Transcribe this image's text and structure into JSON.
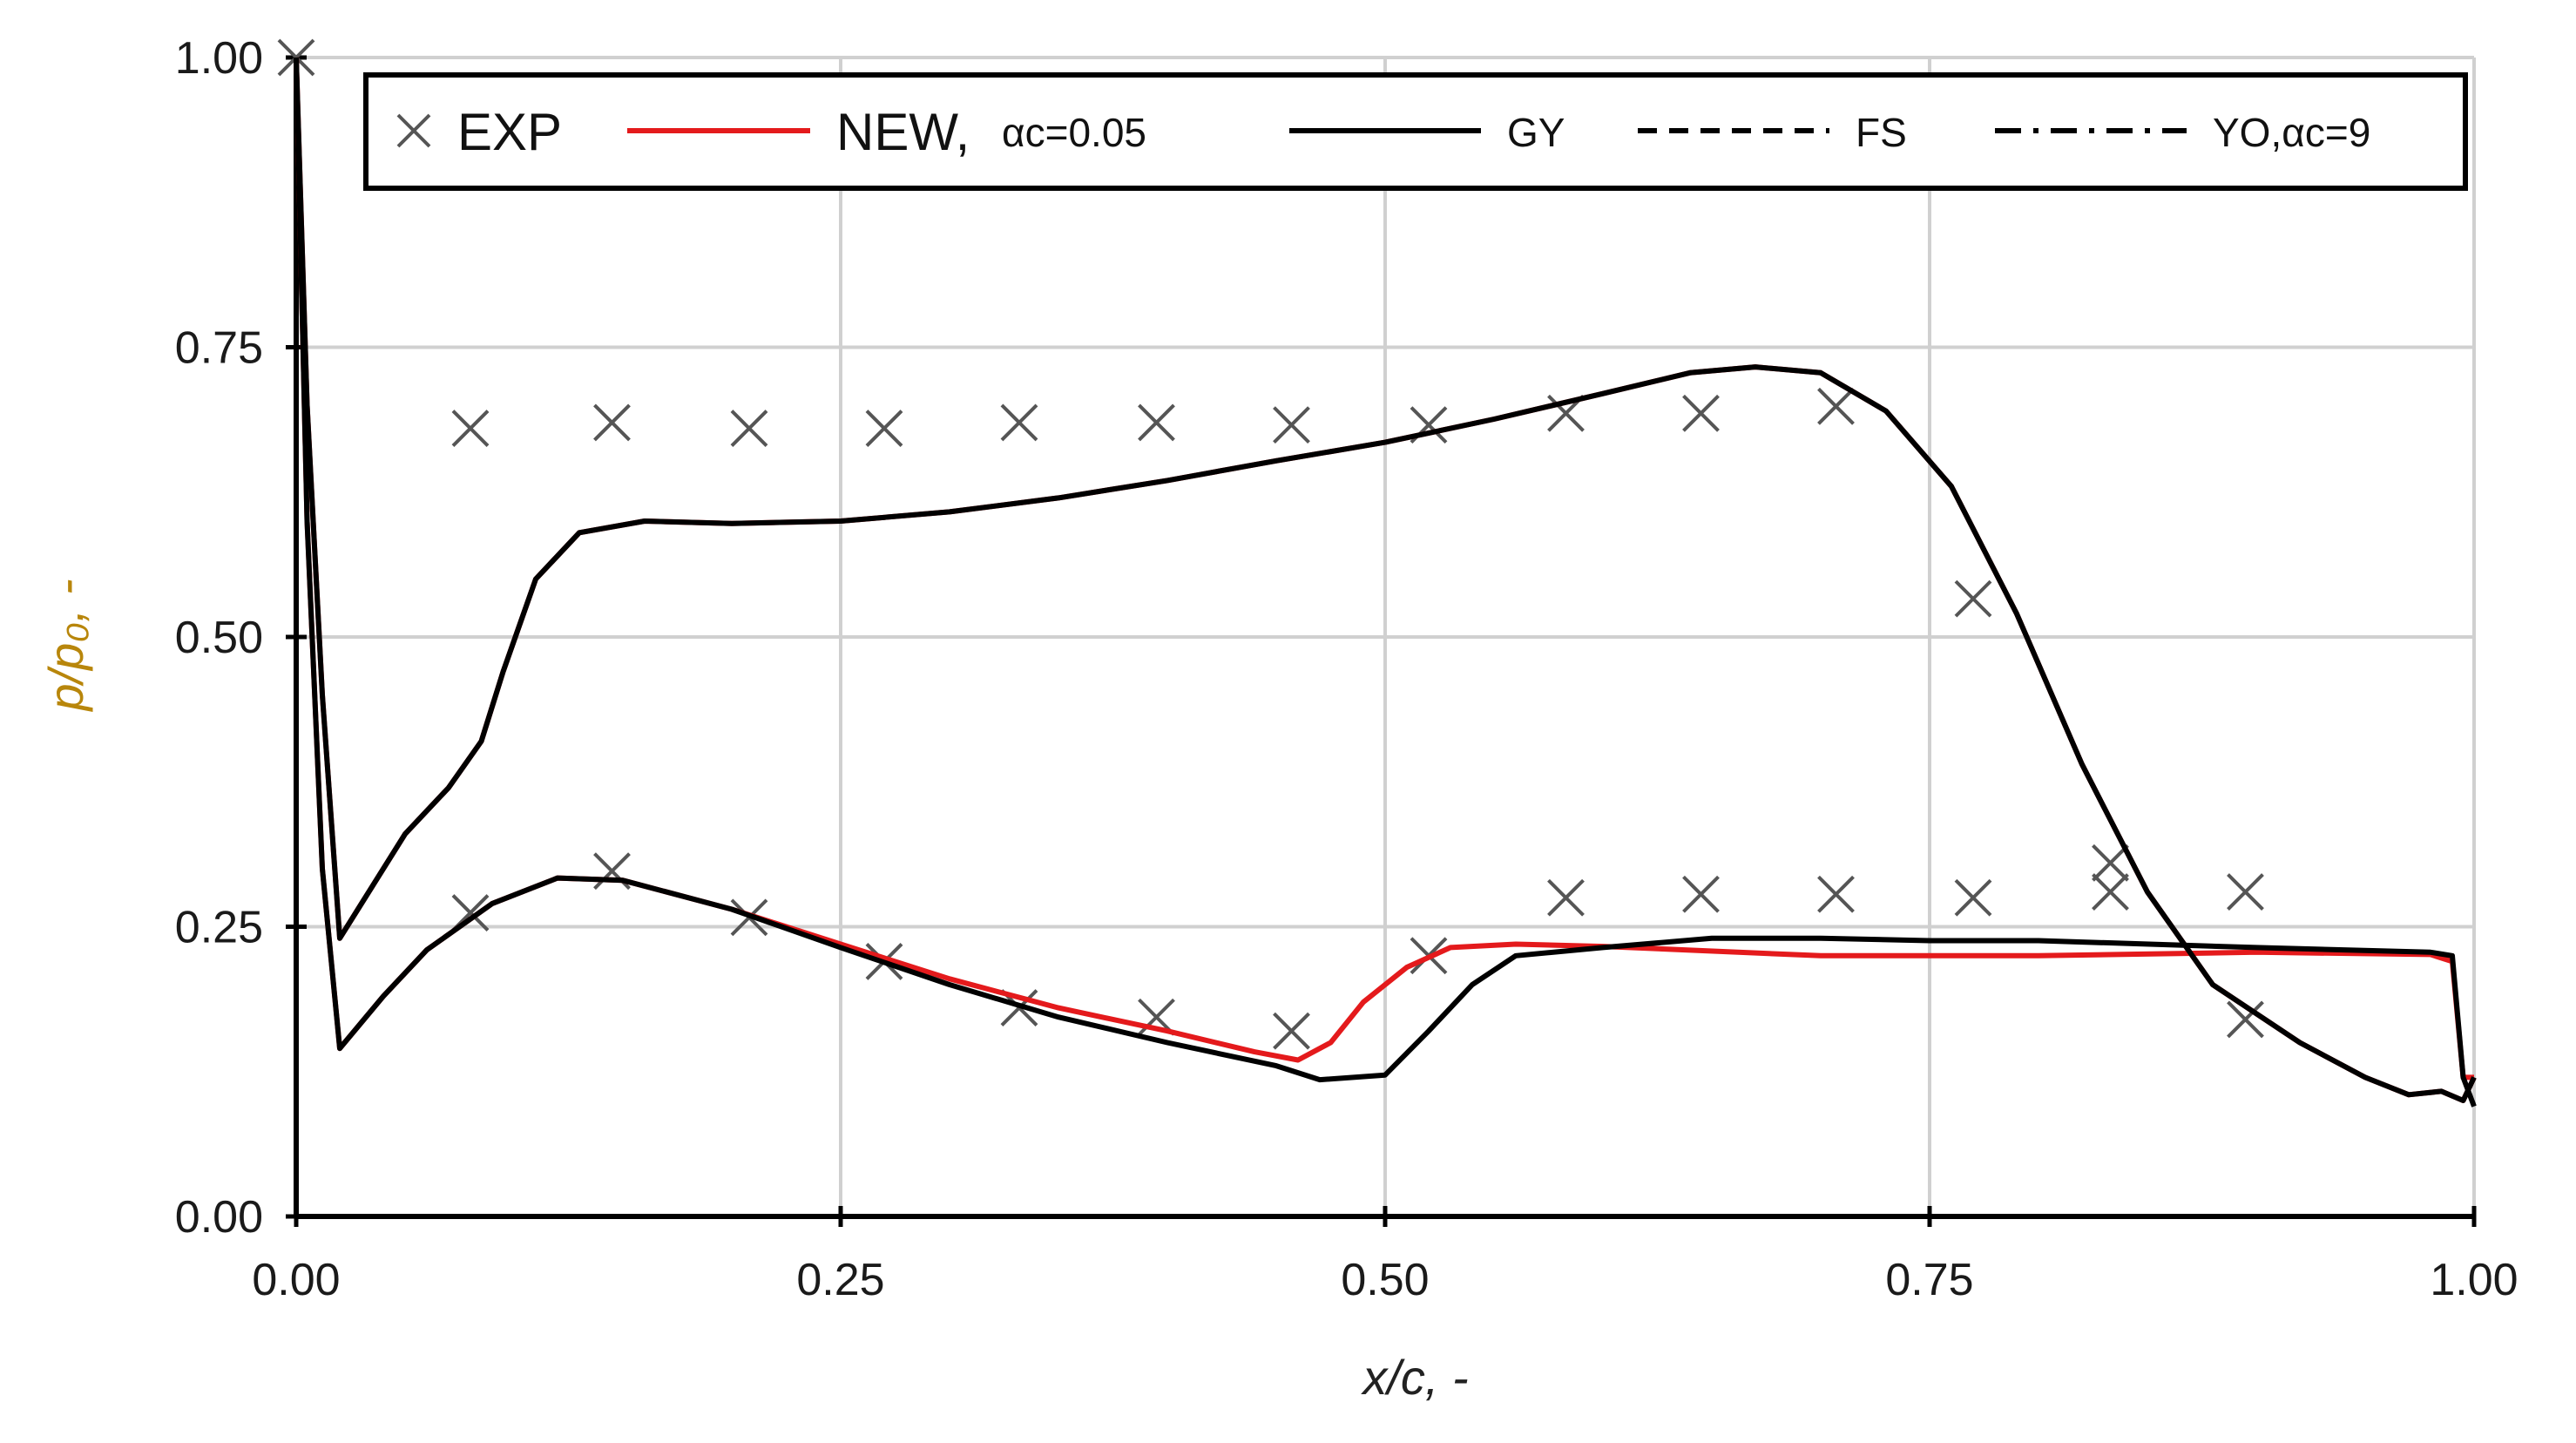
{
  "chart_data": {
    "type": "line",
    "xlabel": "x/c, -",
    "ylabel": "p/p₀, -",
    "xlim": [
      0,
      1
    ],
    "ylim": [
      0,
      1
    ],
    "x_ticks": [
      "0.00",
      "0.25",
      "0.50",
      "0.75",
      "1.00"
    ],
    "y_ticks": [
      "0.00",
      "0.25",
      "0.50",
      "0.75",
      "1.00"
    ],
    "grid": true,
    "legend_placement": "top",
    "legend": [
      {
        "id": "exp",
        "label": "EXP",
        "sub": "",
        "style": "marker-x",
        "color": "#555555"
      },
      {
        "id": "new",
        "label": "NEW, ",
        "sub": "αc=0.05",
        "style": "solid",
        "color": "#e41a1c"
      },
      {
        "id": "gy",
        "label": "",
        "sub": "GY",
        "style": "solid",
        "color": "#000000"
      },
      {
        "id": "fs",
        "label": "",
        "sub": "FS",
        "style": "dashed",
        "color": "#000000"
      },
      {
        "id": "yo",
        "label": "",
        "sub": "YO,αc=9",
        "style": "dashdot",
        "color": "#000000"
      }
    ],
    "series": [
      {
        "name": "EXP",
        "style": "marker-x",
        "color": "#555555",
        "points": [
          [
            0.0,
            1.0
          ],
          [
            0.08,
            0.68
          ],
          [
            0.145,
            0.685
          ],
          [
            0.208,
            0.68
          ],
          [
            0.27,
            0.68
          ],
          [
            0.332,
            0.685
          ],
          [
            0.395,
            0.685
          ],
          [
            0.457,
            0.683
          ],
          [
            0.52,
            0.683
          ],
          [
            0.583,
            0.693
          ],
          [
            0.645,
            0.693
          ],
          [
            0.707,
            0.699
          ],
          [
            0.77,
            0.533
          ],
          [
            0.833,
            0.305
          ],
          [
            0.895,
            0.17
          ],
          [
            0.08,
            0.262
          ],
          [
            0.145,
            0.298
          ],
          [
            0.208,
            0.258
          ],
          [
            0.27,
            0.22
          ],
          [
            0.332,
            0.18
          ],
          [
            0.395,
            0.172
          ],
          [
            0.457,
            0.16
          ],
          [
            0.52,
            0.225
          ],
          [
            0.583,
            0.275
          ],
          [
            0.645,
            0.278
          ],
          [
            0.707,
            0.278
          ],
          [
            0.77,
            0.275
          ],
          [
            0.833,
            0.28
          ],
          [
            0.895,
            0.28
          ]
        ]
      },
      {
        "name": "NEW, αc=0.05 (suction side)",
        "style": "solid",
        "color": "#e41a1c",
        "points": [
          [
            0.0,
            1.0
          ],
          [
            0.005,
            0.7
          ],
          [
            0.012,
            0.45
          ],
          [
            0.02,
            0.24
          ],
          [
            0.03,
            0.27
          ],
          [
            0.05,
            0.33
          ],
          [
            0.07,
            0.37
          ],
          [
            0.085,
            0.41
          ],
          [
            0.095,
            0.47
          ],
          [
            0.11,
            0.55
          ],
          [
            0.13,
            0.59
          ],
          [
            0.16,
            0.6
          ],
          [
            0.2,
            0.598
          ],
          [
            0.25,
            0.6
          ],
          [
            0.3,
            0.608
          ],
          [
            0.35,
            0.62
          ],
          [
            0.4,
            0.635
          ],
          [
            0.45,
            0.652
          ],
          [
            0.5,
            0.668
          ],
          [
            0.55,
            0.688
          ],
          [
            0.6,
            0.71
          ],
          [
            0.64,
            0.728
          ],
          [
            0.67,
            0.733
          ],
          [
            0.7,
            0.728
          ],
          [
            0.73,
            0.695
          ],
          [
            0.76,
            0.63
          ],
          [
            0.79,
            0.52
          ],
          [
            0.82,
            0.39
          ],
          [
            0.85,
            0.28
          ],
          [
            0.88,
            0.2
          ],
          [
            0.92,
            0.15
          ],
          [
            0.95,
            0.12
          ],
          [
            0.97,
            0.105
          ],
          [
            0.985,
            0.108
          ],
          [
            0.995,
            0.1
          ],
          [
            1.0,
            0.12
          ]
        ]
      },
      {
        "name": "NEW, αc=0.05 (pressure side)",
        "style": "solid",
        "color": "#e41a1c",
        "points": [
          [
            0.0,
            1.0
          ],
          [
            0.005,
            0.6
          ],
          [
            0.012,
            0.3
          ],
          [
            0.02,
            0.145
          ],
          [
            0.04,
            0.19
          ],
          [
            0.06,
            0.23
          ],
          [
            0.09,
            0.27
          ],
          [
            0.12,
            0.292
          ],
          [
            0.15,
            0.29
          ],
          [
            0.2,
            0.265
          ],
          [
            0.25,
            0.235
          ],
          [
            0.3,
            0.205
          ],
          [
            0.35,
            0.18
          ],
          [
            0.4,
            0.16
          ],
          [
            0.44,
            0.142
          ],
          [
            0.46,
            0.135
          ],
          [
            0.475,
            0.15
          ],
          [
            0.49,
            0.185
          ],
          [
            0.51,
            0.215
          ],
          [
            0.53,
            0.232
          ],
          [
            0.56,
            0.235
          ],
          [
            0.6,
            0.233
          ],
          [
            0.7,
            0.225
          ],
          [
            0.8,
            0.225
          ],
          [
            0.9,
            0.228
          ],
          [
            0.98,
            0.226
          ],
          [
            0.99,
            0.22
          ],
          [
            0.995,
            0.12
          ],
          [
            1.0,
            0.12
          ]
        ]
      },
      {
        "name": "GY / FS / YO (suction side)",
        "style": "solid",
        "color": "#000000",
        "points": [
          [
            0.0,
            1.0
          ],
          [
            0.005,
            0.7
          ],
          [
            0.012,
            0.45
          ],
          [
            0.02,
            0.24
          ],
          [
            0.03,
            0.27
          ],
          [
            0.05,
            0.33
          ],
          [
            0.07,
            0.37
          ],
          [
            0.085,
            0.41
          ],
          [
            0.095,
            0.47
          ],
          [
            0.11,
            0.55
          ],
          [
            0.13,
            0.59
          ],
          [
            0.16,
            0.6
          ],
          [
            0.2,
            0.598
          ],
          [
            0.25,
            0.6
          ],
          [
            0.3,
            0.608
          ],
          [
            0.35,
            0.62
          ],
          [
            0.4,
            0.635
          ],
          [
            0.45,
            0.652
          ],
          [
            0.5,
            0.668
          ],
          [
            0.55,
            0.688
          ],
          [
            0.6,
            0.71
          ],
          [
            0.64,
            0.728
          ],
          [
            0.67,
            0.733
          ],
          [
            0.7,
            0.728
          ],
          [
            0.73,
            0.695
          ],
          [
            0.76,
            0.63
          ],
          [
            0.79,
            0.52
          ],
          [
            0.82,
            0.39
          ],
          [
            0.85,
            0.28
          ],
          [
            0.88,
            0.2
          ],
          [
            0.92,
            0.15
          ],
          [
            0.95,
            0.12
          ],
          [
            0.97,
            0.105
          ],
          [
            0.985,
            0.108
          ],
          [
            0.995,
            0.1
          ],
          [
            1.0,
            0.12
          ]
        ]
      },
      {
        "name": "GY / FS / YO (pressure side)",
        "style": "solid",
        "color": "#000000",
        "points": [
          [
            0.0,
            1.0
          ],
          [
            0.005,
            0.6
          ],
          [
            0.012,
            0.3
          ],
          [
            0.02,
            0.145
          ],
          [
            0.04,
            0.19
          ],
          [
            0.06,
            0.23
          ],
          [
            0.09,
            0.27
          ],
          [
            0.12,
            0.292
          ],
          [
            0.15,
            0.29
          ],
          [
            0.2,
            0.265
          ],
          [
            0.25,
            0.232
          ],
          [
            0.3,
            0.2
          ],
          [
            0.35,
            0.172
          ],
          [
            0.4,
            0.15
          ],
          [
            0.45,
            0.13
          ],
          [
            0.47,
            0.118
          ],
          [
            0.5,
            0.122
          ],
          [
            0.52,
            0.16
          ],
          [
            0.54,
            0.2
          ],
          [
            0.56,
            0.225
          ],
          [
            0.6,
            0.232
          ],
          [
            0.65,
            0.24
          ],
          [
            0.7,
            0.24
          ],
          [
            0.75,
            0.238
          ],
          [
            0.8,
            0.238
          ],
          [
            0.9,
            0.232
          ],
          [
            0.98,
            0.228
          ],
          [
            0.99,
            0.225
          ],
          [
            0.995,
            0.12
          ],
          [
            1.0,
            0.095
          ]
        ]
      }
    ]
  }
}
